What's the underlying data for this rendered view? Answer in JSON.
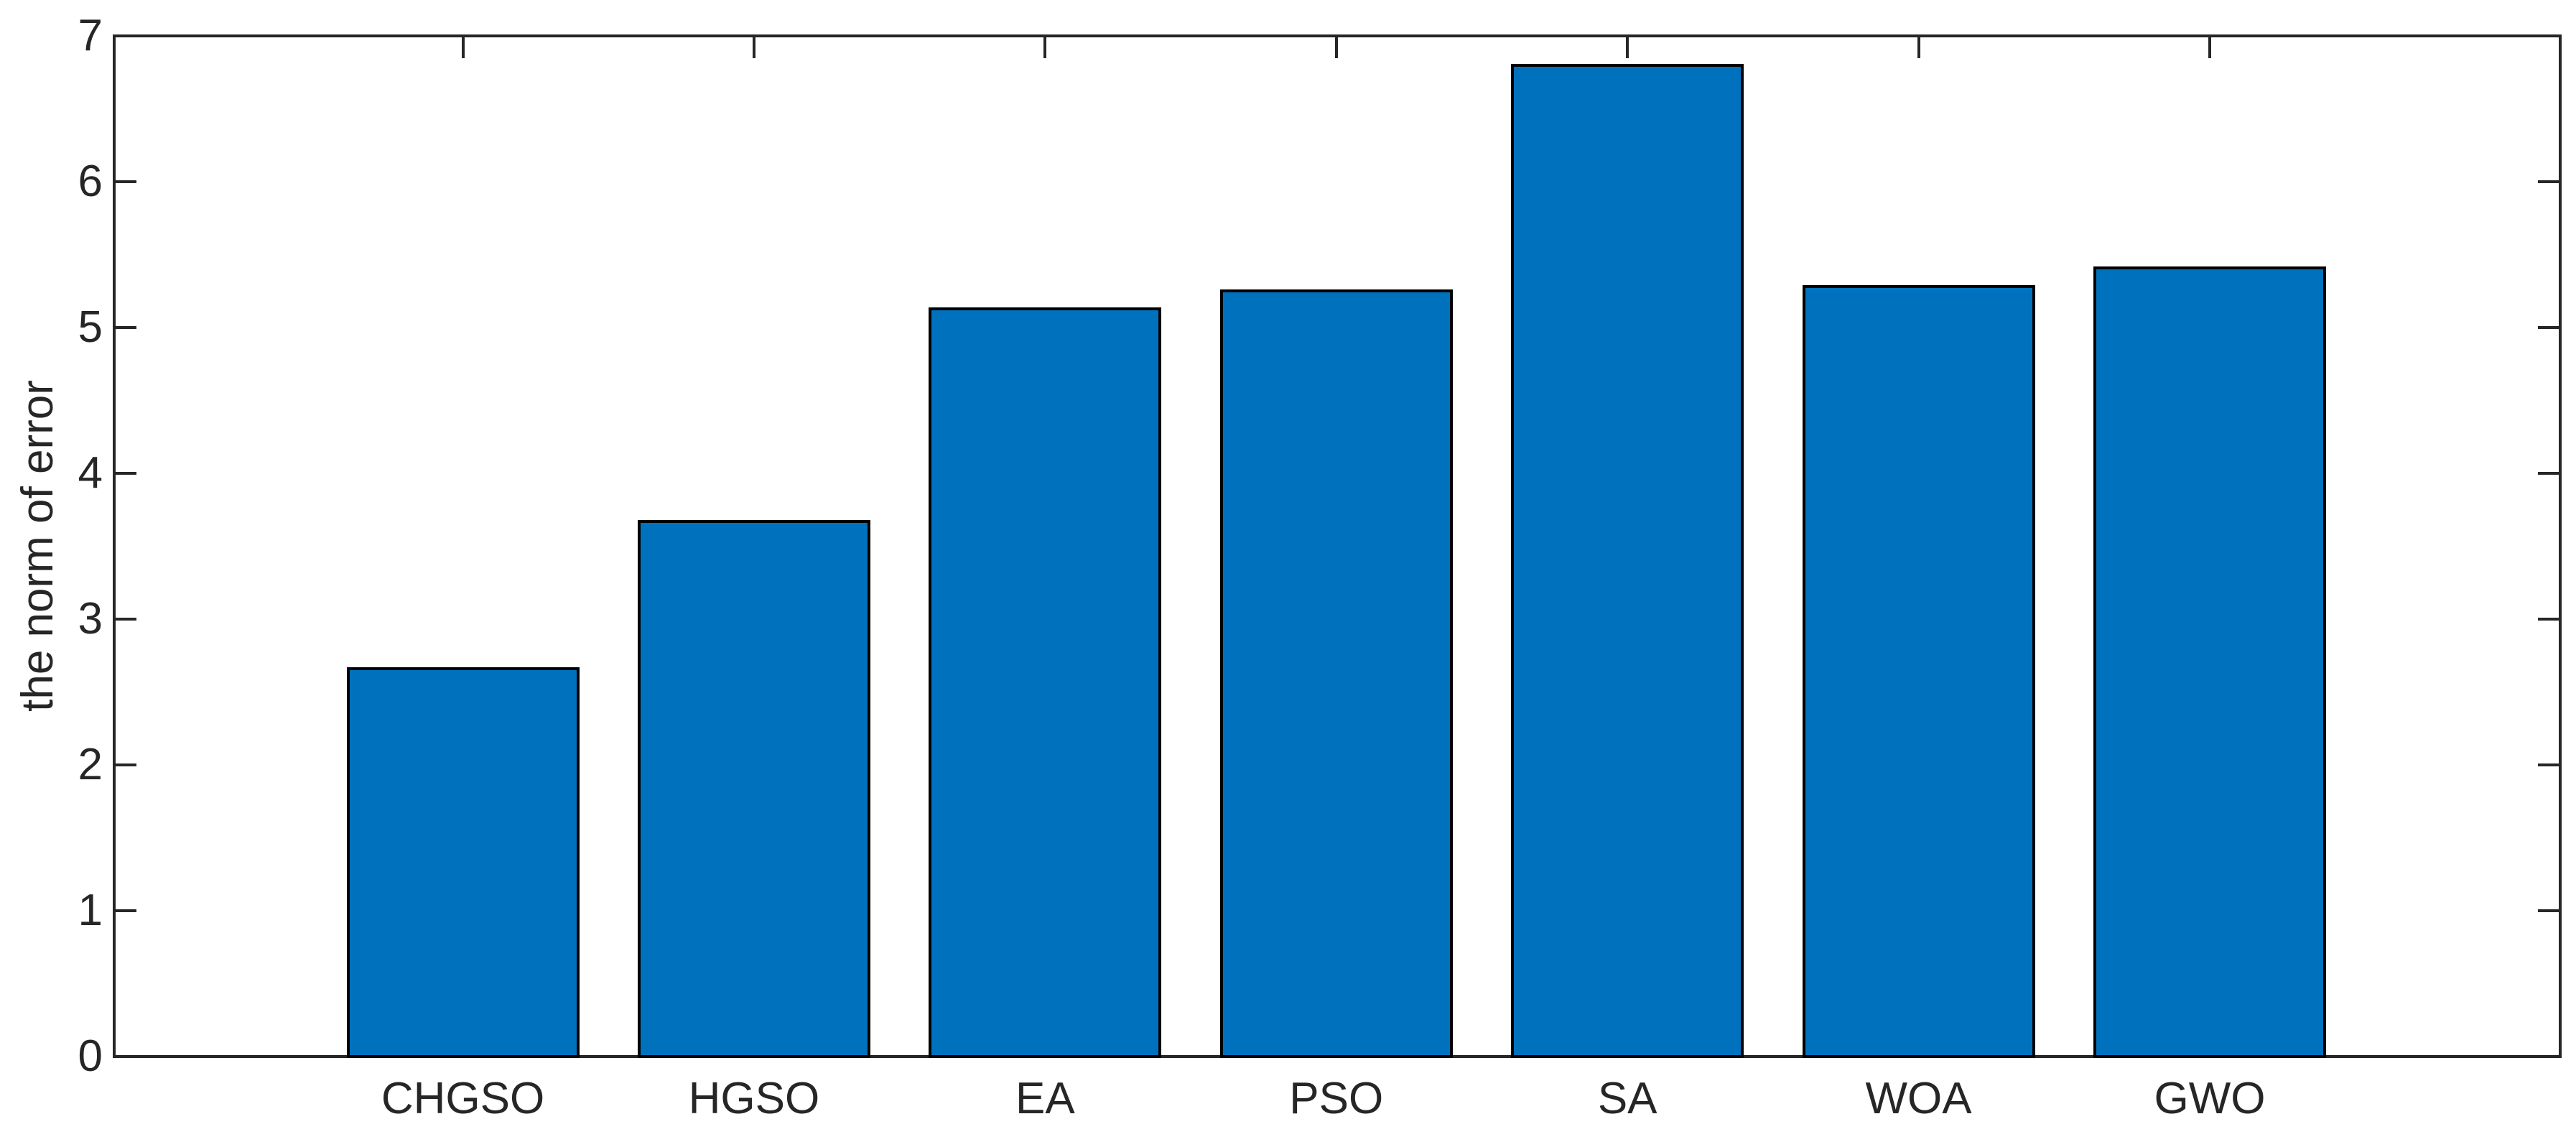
{
  "chart_data": {
    "type": "bar",
    "title": "",
    "xlabel": "",
    "ylabel": "the norm of error",
    "categories": [
      "CHGSO",
      "HGSO",
      "EA",
      "PSO",
      "SA",
      "WOA",
      "GWO"
    ],
    "values": [
      2.67,
      3.68,
      5.14,
      5.26,
      6.81,
      5.29,
      5.42
    ],
    "series_name": "the norm of error",
    "ylim": [
      0,
      7
    ],
    "yticks": [
      0,
      1,
      2,
      3,
      4,
      5,
      6,
      7
    ],
    "ytick_labels": [
      "0",
      "1",
      "2",
      "3",
      "4",
      "5",
      "6",
      "7"
    ],
    "grid": false,
    "legend": null,
    "box": true,
    "tick_direction": "in",
    "bar_width_fraction": 0.8,
    "colors": {
      "bar_fill": "#0072BD",
      "bar_edge": "#000000",
      "axis": "#262626",
      "text": "#262626",
      "background": "#ffffff"
    }
  }
}
